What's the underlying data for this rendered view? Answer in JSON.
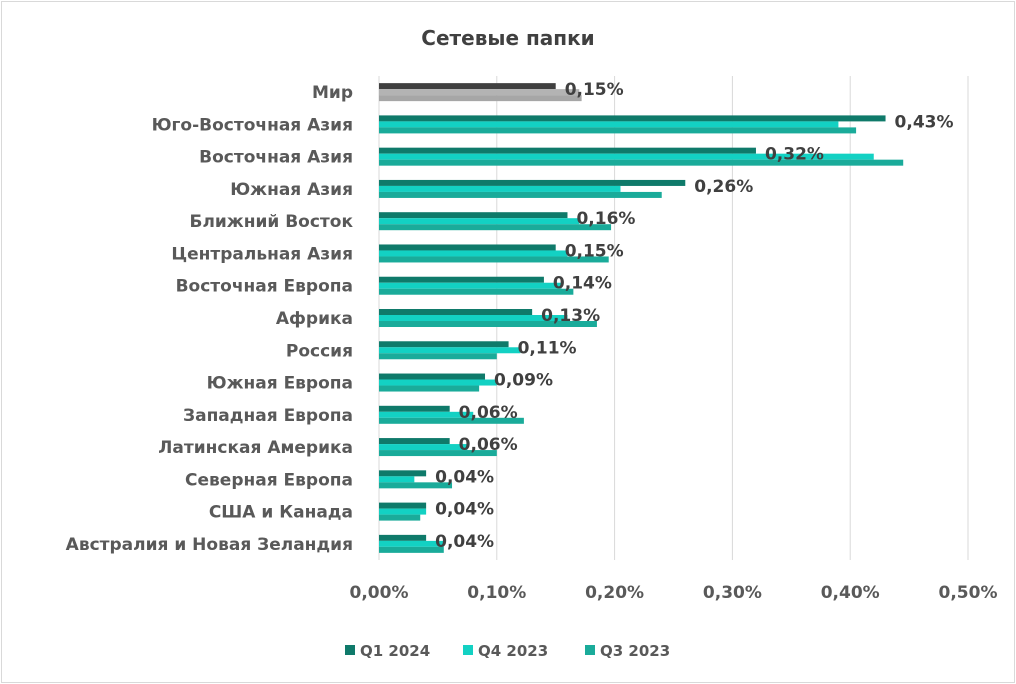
{
  "chart_data": {
    "type": "bar",
    "orientation": "horizontal",
    "title": "Сетевые папки",
    "categories": [
      "Мир",
      "Юго-Восточная Азия",
      "Восточная Азия",
      "Южная Азия",
      "Ближний Восток",
      "Центральная Азия",
      "Восточная Европа",
      "Африка",
      "Россия",
      "Южная Европа",
      "Западная Европа",
      "Латинская Америка",
      "Северная Европа",
      "США и Канада",
      "Австралия и Новая Зеландия"
    ],
    "series": [
      {
        "name": "Q1 2024",
        "color": "#0f7a6a",
        "values": [
          0.15,
          0.43,
          0.32,
          0.26,
          0.16,
          0.15,
          0.14,
          0.13,
          0.11,
          0.09,
          0.06,
          0.06,
          0.04,
          0.04,
          0.04
        ]
      },
      {
        "name": "Q4 2023",
        "color": "#13d1c3",
        "values": [
          0.17,
          0.39,
          0.42,
          0.205,
          0.17,
          0.16,
          0.155,
          0.16,
          0.12,
          0.1,
          0.08,
          0.075,
          0.03,
          0.04,
          0.055
        ]
      },
      {
        "name": "Q3 2023",
        "color": "#1aab9a",
        "values": [
          0.172,
          0.405,
          0.445,
          0.24,
          0.197,
          0.195,
          0.165,
          0.185,
          0.1,
          0.085,
          0.123,
          0.1,
          0.062,
          0.035,
          0.055
        ]
      }
    ],
    "world_colors": [
      "#404040",
      "#b3b3b3",
      "#a6a6a6"
    ],
    "data_labels": [
      "0,15%",
      "0,43%",
      "0,32%",
      "0,26%",
      "0,16%",
      "0,15%",
      "0,14%",
      "0,13%",
      "0,11%",
      "0,09%",
      "0,06%",
      "0,06%",
      "0,04%",
      "0,04%",
      "0,04%"
    ],
    "xlim": [
      0,
      0.5
    ],
    "x_ticks": [
      0,
      0.1,
      0.2,
      0.3,
      0.4,
      0.5
    ],
    "x_tick_labels": [
      "0,00%",
      "0,10%",
      "0,20%",
      "0,30%",
      "0,40%",
      "0,50%"
    ],
    "unit": "%",
    "grid": "vertical",
    "legend_position": "bottom"
  }
}
